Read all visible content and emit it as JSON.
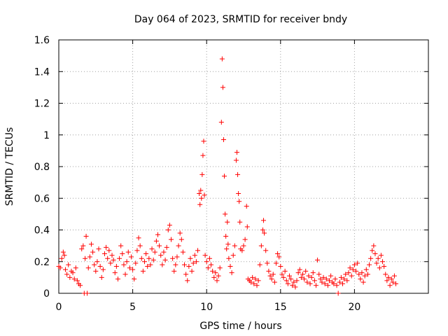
{
  "chart_data": {
    "type": "scatter",
    "title": "Day 064 of 2023, SRMTID for receiver bndy",
    "xlabel": "GPS time / hours",
    "ylabel": "SRMTID / TECUs",
    "xlim": [
      0,
      25
    ],
    "ylim": [
      0,
      1.6
    ],
    "xticks": [
      0,
      5,
      10,
      15,
      20
    ],
    "xtick_labels": [
      "0",
      "5",
      "10",
      "15",
      "20"
    ],
    "yticks": [
      0,
      0.2,
      0.4,
      0.6,
      0.8,
      1.0,
      1.2,
      1.4,
      1.6
    ],
    "ytick_labels": [
      "0",
      "0.2",
      "0.4",
      "0.6",
      "0.8",
      "1",
      "1.2",
      "1.4",
      "1.6"
    ],
    "grid": true,
    "marker": "+",
    "colors": {
      "points": "#ff0000",
      "axes": "#000000",
      "grid": "#a0a0a0"
    },
    "series": [
      {
        "name": "SRMTID",
        "points": [
          [
            0.0,
            0.17
          ],
          [
            0.1,
            0.16
          ],
          [
            0.2,
            0.22
          ],
          [
            0.3,
            0.26
          ],
          [
            0.38,
            0.24
          ],
          [
            0.45,
            0.15
          ],
          [
            0.55,
            0.12
          ],
          [
            0.65,
            0.18
          ],
          [
            0.75,
            0.1
          ],
          [
            0.85,
            0.14
          ],
          [
            0.95,
            0.13
          ],
          [
            1.05,
            0.09
          ],
          [
            1.15,
            0.16
          ],
          [
            1.25,
            0.08
          ],
          [
            1.35,
            0.06
          ],
          [
            1.45,
            0.05
          ],
          [
            1.55,
            0.28
          ],
          [
            1.65,
            0.3
          ],
          [
            1.72,
            0.0
          ],
          [
            1.78,
            0.22
          ],
          [
            1.85,
            0.36
          ],
          [
            1.92,
            0.0
          ],
          [
            2.0,
            0.16
          ],
          [
            2.1,
            0.23
          ],
          [
            2.2,
            0.31
          ],
          [
            2.3,
            0.26
          ],
          [
            2.4,
            0.18
          ],
          [
            2.5,
            0.14
          ],
          [
            2.6,
            0.2
          ],
          [
            2.7,
            0.28
          ],
          [
            2.8,
            0.17
          ],
          [
            2.9,
            0.1
          ],
          [
            3.0,
            0.15
          ],
          [
            3.1,
            0.25
          ],
          [
            3.2,
            0.29
          ],
          [
            3.3,
            0.22
          ],
          [
            3.4,
            0.27
          ],
          [
            3.5,
            0.19
          ],
          [
            3.6,
            0.24
          ],
          [
            3.7,
            0.21
          ],
          [
            3.8,
            0.13
          ],
          [
            3.9,
            0.17
          ],
          [
            4.0,
            0.09
          ],
          [
            4.1,
            0.22
          ],
          [
            4.2,
            0.3
          ],
          [
            4.3,
            0.25
          ],
          [
            4.4,
            0.18
          ],
          [
            4.5,
            0.12
          ],
          [
            4.6,
            0.2
          ],
          [
            4.7,
            0.26
          ],
          [
            4.8,
            0.16
          ],
          [
            4.9,
            0.23
          ],
          [
            5.0,
            0.15
          ],
          [
            5.1,
            0.09
          ],
          [
            5.2,
            0.19
          ],
          [
            5.3,
            0.27
          ],
          [
            5.4,
            0.35
          ],
          [
            5.5,
            0.3
          ],
          [
            5.6,
            0.22
          ],
          [
            5.7,
            0.14
          ],
          [
            5.8,
            0.2
          ],
          [
            5.9,
            0.25
          ],
          [
            6.0,
            0.17
          ],
          [
            6.1,
            0.22
          ],
          [
            6.2,
            0.18
          ],
          [
            6.3,
            0.28
          ],
          [
            6.4,
            0.21
          ],
          [
            6.5,
            0.26
          ],
          [
            6.6,
            0.33
          ],
          [
            6.7,
            0.37
          ],
          [
            6.8,
            0.3
          ],
          [
            6.9,
            0.24
          ],
          [
            7.0,
            0.18
          ],
          [
            7.1,
            0.26
          ],
          [
            7.2,
            0.21
          ],
          [
            7.3,
            0.29
          ],
          [
            7.4,
            0.4
          ],
          [
            7.5,
            0.43
          ],
          [
            7.6,
            0.34
          ],
          [
            7.7,
            0.22
          ],
          [
            7.8,
            0.14
          ],
          [
            7.9,
            0.18
          ],
          [
            8.0,
            0.23
          ],
          [
            8.1,
            0.3
          ],
          [
            8.2,
            0.38
          ],
          [
            8.3,
            0.34
          ],
          [
            8.4,
            0.26
          ],
          [
            8.5,
            0.18
          ],
          [
            8.6,
            0.12
          ],
          [
            8.7,
            0.08
          ],
          [
            8.8,
            0.17
          ],
          [
            8.9,
            0.22
          ],
          [
            9.0,
            0.14
          ],
          [
            9.1,
            0.19
          ],
          [
            9.2,
            0.24
          ],
          [
            9.3,
            0.2
          ],
          [
            9.4,
            0.27
          ],
          [
            9.5,
            0.63
          ],
          [
            9.55,
            0.56
          ],
          [
            9.6,
            0.65
          ],
          [
            9.65,
            0.6
          ],
          [
            9.7,
            0.75
          ],
          [
            9.75,
            0.87
          ],
          [
            9.8,
            0.96
          ],
          [
            9.85,
            0.62
          ],
          [
            9.9,
            0.24
          ],
          [
            10.0,
            0.2
          ],
          [
            10.1,
            0.16
          ],
          [
            10.2,
            0.22
          ],
          [
            10.3,
            0.18
          ],
          [
            10.4,
            0.14
          ],
          [
            10.5,
            0.1
          ],
          [
            10.6,
            0.13
          ],
          [
            10.7,
            0.08
          ],
          [
            10.8,
            0.11
          ],
          [
            10.9,
            0.16
          ],
          [
            11.0,
            1.08
          ],
          [
            11.05,
            1.48
          ],
          [
            11.1,
            1.3
          ],
          [
            11.15,
            0.97
          ],
          [
            11.2,
            0.74
          ],
          [
            11.25,
            0.5
          ],
          [
            11.3,
            0.36
          ],
          [
            11.35,
            0.28
          ],
          [
            11.4,
            0.45
          ],
          [
            11.45,
            0.31
          ],
          [
            11.5,
            0.22
          ],
          [
            11.6,
            0.17
          ],
          [
            11.7,
            0.13
          ],
          [
            11.8,
            0.24
          ],
          [
            11.9,
            0.3
          ],
          [
            12.0,
            0.84
          ],
          [
            12.05,
            0.89
          ],
          [
            12.1,
            0.75
          ],
          [
            12.15,
            0.63
          ],
          [
            12.2,
            0.58
          ],
          [
            12.25,
            0.45
          ],
          [
            12.3,
            0.28
          ],
          [
            12.4,
            0.27
          ],
          [
            12.5,
            0.3
          ],
          [
            12.6,
            0.34
          ],
          [
            12.7,
            0.55
          ],
          [
            12.75,
            0.42
          ],
          [
            12.8,
            0.09
          ],
          [
            12.9,
            0.08
          ],
          [
            13.0,
            0.07
          ],
          [
            13.1,
            0.1
          ],
          [
            13.2,
            0.06
          ],
          [
            13.3,
            0.09
          ],
          [
            13.4,
            0.05
          ],
          [
            13.5,
            0.08
          ],
          [
            13.6,
            0.18
          ],
          [
            13.7,
            0.3
          ],
          [
            13.8,
            0.4
          ],
          [
            13.85,
            0.46
          ],
          [
            13.9,
            0.38
          ],
          [
            14.0,
            0.27
          ],
          [
            14.1,
            0.19
          ],
          [
            14.2,
            0.14
          ],
          [
            14.3,
            0.11
          ],
          [
            14.4,
            0.09
          ],
          [
            14.5,
            0.12
          ],
          [
            14.6,
            0.07
          ],
          [
            14.7,
            0.19
          ],
          [
            14.8,
            0.25
          ],
          [
            14.9,
            0.23
          ],
          [
            15.0,
            0.17
          ],
          [
            15.1,
            0.12
          ],
          [
            15.2,
            0.1
          ],
          [
            15.3,
            0.14
          ],
          [
            15.4,
            0.08
          ],
          [
            15.5,
            0.06
          ],
          [
            15.6,
            0.11
          ],
          [
            15.7,
            0.09
          ],
          [
            15.8,
            0.05
          ],
          [
            15.9,
            0.07
          ],
          [
            16.0,
            0.04
          ],
          [
            16.1,
            0.08
          ],
          [
            16.2,
            0.13
          ],
          [
            16.3,
            0.15
          ],
          [
            16.4,
            0.1
          ],
          [
            16.5,
            0.12
          ],
          [
            16.6,
            0.09
          ],
          [
            16.7,
            0.14
          ],
          [
            16.8,
            0.07
          ],
          [
            16.9,
            0.11
          ],
          [
            17.0,
            0.06
          ],
          [
            17.1,
            0.1
          ],
          [
            17.2,
            0.13
          ],
          [
            17.3,
            0.08
          ],
          [
            17.4,
            0.05
          ],
          [
            17.5,
            0.21
          ],
          [
            17.6,
            0.12
          ],
          [
            17.7,
            0.09
          ],
          [
            17.8,
            0.07
          ],
          [
            17.9,
            0.1
          ],
          [
            18.0,
            0.06
          ],
          [
            18.1,
            0.09
          ],
          [
            18.2,
            0.05
          ],
          [
            18.3,
            0.08
          ],
          [
            18.4,
            0.11
          ],
          [
            18.5,
            0.07
          ],
          [
            18.6,
            0.06
          ],
          [
            18.7,
            0.09
          ],
          [
            18.8,
            0.05
          ],
          [
            18.9,
            0.0
          ],
          [
            19.0,
            0.07
          ],
          [
            19.1,
            0.1
          ],
          [
            19.2,
            0.06
          ],
          [
            19.3,
            0.09
          ],
          [
            19.4,
            0.12
          ],
          [
            19.5,
            0.08
          ],
          [
            19.6,
            0.13
          ],
          [
            19.7,
            0.16
          ],
          [
            19.8,
            0.11
          ],
          [
            19.9,
            0.15
          ],
          [
            20.0,
            0.18
          ],
          [
            20.1,
            0.14
          ],
          [
            20.2,
            0.19
          ],
          [
            20.3,
            0.12
          ],
          [
            20.4,
            0.09
          ],
          [
            20.5,
            0.13
          ],
          [
            20.6,
            0.07
          ],
          [
            20.7,
            0.11
          ],
          [
            20.8,
            0.15
          ],
          [
            20.9,
            0.12
          ],
          [
            21.0,
            0.18
          ],
          [
            21.1,
            0.22
          ],
          [
            21.2,
            0.27
          ],
          [
            21.3,
            0.3
          ],
          [
            21.4,
            0.25
          ],
          [
            21.5,
            0.19
          ],
          [
            21.6,
            0.22
          ],
          [
            21.7,
            0.16
          ],
          [
            21.8,
            0.24
          ],
          [
            21.9,
            0.2
          ],
          [
            22.0,
            0.17
          ],
          [
            22.1,
            0.12
          ],
          [
            22.2,
            0.08
          ],
          [
            22.3,
            0.1
          ],
          [
            22.4,
            0.05
          ],
          [
            22.5,
            0.09
          ],
          [
            22.6,
            0.07
          ],
          [
            22.7,
            0.11
          ],
          [
            22.8,
            0.06
          ]
        ]
      }
    ]
  }
}
